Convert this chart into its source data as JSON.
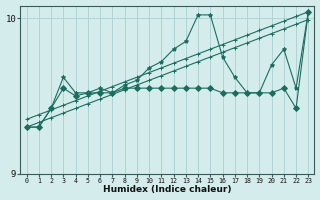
{
  "xlabel": "Humidex (Indice chaleur)",
  "xlim": [
    -0.5,
    23.5
  ],
  "ylim": [
    9.0,
    10.08
  ],
  "yticks": [
    9,
    10
  ],
  "xticks": [
    0,
    1,
    2,
    3,
    4,
    5,
    6,
    7,
    8,
    9,
    10,
    11,
    12,
    13,
    14,
    15,
    16,
    17,
    18,
    19,
    20,
    21,
    22,
    23
  ],
  "bg_color": "#d4ecec",
  "grid_color": "#aacfcf",
  "line_color": "#1a6e5e",
  "series": [
    {
      "x": [
        0,
        1,
        2,
        3,
        4,
        5,
        6,
        7,
        8,
        9,
        10,
        11,
        12,
        13,
        14,
        15,
        16,
        17,
        18,
        19,
        20,
        21,
        22,
        23
      ],
      "y": [
        9.35,
        9.38,
        9.41,
        9.44,
        9.47,
        9.5,
        9.53,
        9.56,
        9.59,
        9.62,
        9.65,
        9.68,
        9.71,
        9.74,
        9.77,
        9.8,
        9.83,
        9.86,
        9.89,
        9.92,
        9.95,
        9.98,
        10.01,
        10.04
      ],
      "marker": "+"
    },
    {
      "x": [
        0,
        1,
        2,
        3,
        4,
        5,
        6,
        7,
        8,
        9,
        10,
        11,
        12,
        13,
        14,
        15,
        16,
        17,
        18,
        19,
        20,
        21,
        22,
        23
      ],
      "y": [
        9.3,
        9.33,
        9.36,
        9.39,
        9.42,
        9.45,
        9.48,
        9.51,
        9.54,
        9.57,
        9.6,
        9.63,
        9.66,
        9.69,
        9.72,
        9.75,
        9.78,
        9.81,
        9.84,
        9.87,
        9.9,
        9.93,
        9.96,
        9.99
      ],
      "marker": "+"
    },
    {
      "x": [
        0,
        1,
        2,
        3,
        4,
        5,
        6,
        7,
        8,
        9,
        10,
        11,
        12,
        13,
        14,
        15,
        16,
        17,
        18,
        19,
        20,
        21,
        22,
        23
      ],
      "y": [
        9.3,
        9.3,
        9.42,
        9.62,
        9.52,
        9.52,
        9.55,
        9.52,
        9.57,
        9.6,
        9.68,
        9.72,
        9.8,
        9.85,
        10.02,
        10.02,
        9.75,
        9.62,
        9.52,
        9.52,
        9.7,
        9.8,
        9.55,
        10.04
      ],
      "marker": "*"
    },
    {
      "x": [
        0,
        1,
        2,
        3,
        4,
        5,
        6,
        7,
        8,
        9,
        10,
        11,
        12,
        13,
        14,
        15,
        16,
        17,
        18,
        19,
        20,
        21,
        22,
        23
      ],
      "y": [
        9.3,
        9.3,
        9.42,
        9.55,
        9.5,
        9.52,
        9.52,
        9.52,
        9.55,
        9.55,
        9.55,
        9.55,
        9.55,
        9.55,
        9.55,
        9.55,
        9.52,
        9.52,
        9.52,
        9.52,
        9.52,
        9.55,
        9.42,
        10.04
      ],
      "marker": "D"
    }
  ]
}
